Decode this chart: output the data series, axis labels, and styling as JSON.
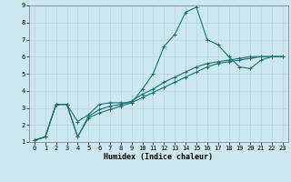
{
  "title": "",
  "xlabel": "Humidex (Indice chaleur)",
  "xlim": [
    -0.5,
    23.5
  ],
  "ylim": [
    1,
    9
  ],
  "xticks": [
    0,
    1,
    2,
    3,
    4,
    5,
    6,
    7,
    8,
    9,
    10,
    11,
    12,
    13,
    14,
    15,
    16,
    17,
    18,
    19,
    20,
    21,
    22,
    23
  ],
  "yticks": [
    1,
    2,
    3,
    4,
    5,
    6,
    7,
    8,
    9
  ],
  "bg_color": "#cce8ee",
  "grid_color": "#b8d4d8",
  "line_color": "#1a7070",
  "line1_x": [
    0,
    1,
    2,
    3,
    4,
    5,
    6,
    7,
    8,
    9,
    10,
    11,
    12,
    13,
    14,
    15,
    16,
    17,
    18,
    19,
    20,
    21,
    22,
    23
  ],
  "line1_y": [
    1.1,
    1.3,
    3.2,
    3.2,
    2.2,
    2.6,
    3.2,
    3.3,
    3.3,
    3.3,
    4.1,
    5.0,
    6.6,
    7.3,
    8.6,
    8.9,
    7.0,
    6.7,
    6.0,
    5.4,
    5.3,
    5.8,
    6.0,
    6.0
  ],
  "line2_x": [
    0,
    1,
    2,
    3,
    4,
    5,
    6,
    7,
    8,
    9,
    10,
    11,
    12,
    13,
    14,
    15,
    16,
    17,
    18,
    19,
    20,
    21,
    22,
    23
  ],
  "line2_y": [
    1.1,
    1.3,
    3.2,
    3.2,
    1.3,
    2.5,
    2.9,
    3.1,
    3.2,
    3.4,
    3.8,
    4.1,
    4.5,
    4.8,
    5.1,
    5.4,
    5.6,
    5.7,
    5.8,
    5.9,
    6.0,
    6.0,
    6.0,
    6.0
  ],
  "line3_x": [
    0,
    1,
    2,
    3,
    4,
    5,
    6,
    7,
    8,
    9,
    10,
    11,
    12,
    13,
    14,
    15,
    16,
    17,
    18,
    19,
    20,
    21,
    22,
    23
  ],
  "line3_y": [
    1.1,
    1.3,
    3.2,
    3.2,
    1.3,
    2.4,
    2.7,
    2.9,
    3.1,
    3.3,
    3.6,
    3.9,
    4.2,
    4.5,
    4.8,
    5.1,
    5.4,
    5.6,
    5.7,
    5.8,
    5.9,
    6.0,
    6.0,
    6.0
  ],
  "tick_fontsize": 5.0,
  "xlabel_fontsize": 6.0,
  "marker_size": 2.5,
  "line_width": 0.8
}
